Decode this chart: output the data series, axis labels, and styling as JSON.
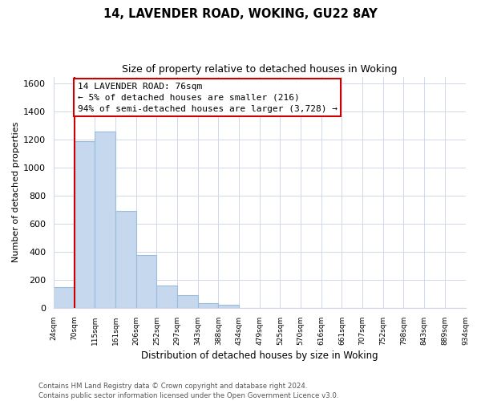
{
  "title": "14, LAVENDER ROAD, WOKING, GU22 8AY",
  "subtitle": "Size of property relative to detached houses in Woking",
  "xlabel": "Distribution of detached houses by size in Woking",
  "ylabel": "Number of detached properties",
  "footnote1": "Contains HM Land Registry data © Crown copyright and database right 2024.",
  "footnote2": "Contains public sector information licensed under the Open Government Licence v3.0.",
  "bin_labels": [
    "24sqm",
    "70sqm",
    "115sqm",
    "161sqm",
    "206sqm",
    "252sqm",
    "297sqm",
    "343sqm",
    "388sqm",
    "434sqm",
    "479sqm",
    "525sqm",
    "570sqm",
    "616sqm",
    "661sqm",
    "707sqm",
    "752sqm",
    "798sqm",
    "843sqm",
    "889sqm",
    "934sqm"
  ],
  "bar_values": [
    150,
    1190,
    1260,
    690,
    375,
    160,
    90,
    35,
    20,
    0,
    0,
    0,
    0,
    0,
    0,
    0,
    0,
    0,
    0,
    0
  ],
  "bar_color": "#c5d8ed",
  "bar_edge_color": "#9bbcda",
  "grid_color": "#d0d8e8",
  "property_line_color": "#cc0000",
  "annotation_title": "14 LAVENDER ROAD: 76sqm",
  "annotation_line1": "← 5% of detached houses are smaller (216)",
  "annotation_line2": "94% of semi-detached houses are larger (3,728) →",
  "annotation_box_color": "#ffffff",
  "annotation_box_edge": "#cc0000",
  "ylim": [
    0,
    1650
  ],
  "yticks": [
    0,
    200,
    400,
    600,
    800,
    1000,
    1200,
    1400,
    1600
  ],
  "num_bins": 20
}
